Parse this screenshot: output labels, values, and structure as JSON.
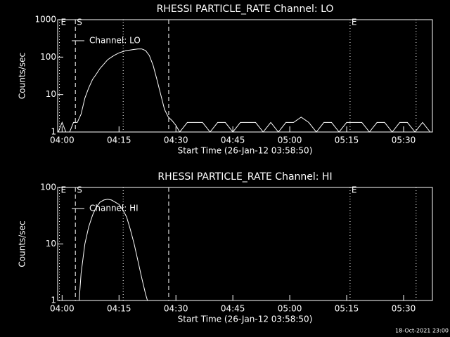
{
  "chart_data": [
    {
      "type": "line",
      "title": "RHESSI PARTICLE_RATE Channel: LO",
      "x_label": "Start Time (26-Jan-12 03:58:50)",
      "y_label": "Counts/sec",
      "log_y": true,
      "ylim": [
        1,
        1000
      ],
      "yticks": [
        1,
        10,
        100,
        1000
      ],
      "xlim": [
        -1.17,
        97.6
      ],
      "xticks": [
        {
          "value": 0,
          "label": "04:00"
        },
        {
          "value": 15,
          "label": "04:15"
        },
        {
          "value": 30,
          "label": "04:30"
        },
        {
          "value": 45,
          "label": "04:45"
        },
        {
          "value": 60,
          "label": "05:00"
        },
        {
          "value": 75,
          "label": "05:15"
        },
        {
          "value": 90,
          "label": "05:30"
        }
      ],
      "markers": [
        {
          "x": -0.7,
          "style": "dotted",
          "label": "E"
        },
        {
          "x": 3.5,
          "style": "dashed",
          "label": "S"
        },
        {
          "x": 16.1,
          "style": "dotted"
        },
        {
          "x": 28.1,
          "style": "dashed"
        },
        {
          "x": 75.9,
          "style": "dotted",
          "label": "E"
        },
        {
          "x": 93.3,
          "style": "dotted"
        }
      ],
      "series": [
        {
          "name": "Channel: LO",
          "color": "#ffffff",
          "x": [
            -1,
            0,
            1,
            2,
            3,
            4,
            5,
            6,
            7,
            8,
            9,
            10,
            11,
            12,
            13,
            14,
            15,
            16,
            17,
            18,
            19,
            20,
            21,
            22,
            23,
            24,
            25,
            26,
            27,
            28,
            29,
            30,
            31,
            33,
            35,
            37,
            39,
            41,
            43,
            45,
            47,
            49,
            51,
            53,
            55,
            57,
            59,
            61,
            63,
            65,
            67,
            69,
            71,
            73,
            75,
            77,
            79,
            81,
            83,
            85,
            87,
            89,
            91,
            93,
            95,
            97
          ],
          "values": [
            1,
            1.8,
            1,
            1,
            1.8,
            1.8,
            3,
            8,
            15,
            25,
            35,
            50,
            65,
            85,
            100,
            115,
            130,
            140,
            150,
            155,
            160,
            165,
            165,
            150,
            110,
            60,
            25,
            10,
            4,
            2.5,
            2,
            1.5,
            1,
            1.8,
            1.8,
            1.8,
            1,
            1.8,
            1.8,
            1,
            1.8,
            1.8,
            1.8,
            1,
            1.8,
            1,
            1.8,
            1.8,
            2.5,
            1.8,
            1,
            1.8,
            1.8,
            1,
            1.8,
            1.8,
            1.8,
            1,
            1.8,
            1.8,
            1,
            1.8,
            1.8,
            1,
            1.8,
            1
          ]
        }
      ]
    },
    {
      "type": "line",
      "title": "RHESSI PARTICLE_RATE Channel: HI",
      "x_label": "Start Time (26-Jan-12 03:58:50)",
      "y_label": "Counts/sec",
      "log_y": true,
      "ylim": [
        1,
        100
      ],
      "yticks": [
        1,
        10,
        100
      ],
      "xlim": [
        -1.17,
        97.6
      ],
      "xticks": [
        {
          "value": 0,
          "label": "04:00"
        },
        {
          "value": 15,
          "label": "04:15"
        },
        {
          "value": 30,
          "label": "04:30"
        },
        {
          "value": 45,
          "label": "04:45"
        },
        {
          "value": 60,
          "label": "05:00"
        },
        {
          "value": 75,
          "label": "05:15"
        },
        {
          "value": 90,
          "label": "05:30"
        }
      ],
      "markers": [
        {
          "x": -0.7,
          "style": "dotted",
          "label": "E"
        },
        {
          "x": 3.5,
          "style": "dashed",
          "label": "S"
        },
        {
          "x": 16.1,
          "style": "dotted"
        },
        {
          "x": 28.1,
          "style": "dashed"
        },
        {
          "x": 75.9,
          "style": "dotted",
          "label": "E"
        },
        {
          "x": 93.3,
          "style": "dotted"
        }
      ],
      "series": [
        {
          "name": "Channel: HI",
          "color": "#ffffff",
          "x": [
            4.5,
            5,
            6,
            7,
            8,
            9,
            10,
            11,
            12,
            13,
            14,
            15,
            16,
            17,
            18,
            19,
            20,
            21,
            22,
            22.5
          ],
          "values": [
            1,
            3,
            10,
            20,
            32,
            45,
            55,
            60,
            62,
            60,
            55,
            50,
            40,
            30,
            18,
            10,
            5,
            2.5,
            1.3,
            1
          ]
        }
      ]
    }
  ],
  "footer": "18-Oct-2021 23:00"
}
